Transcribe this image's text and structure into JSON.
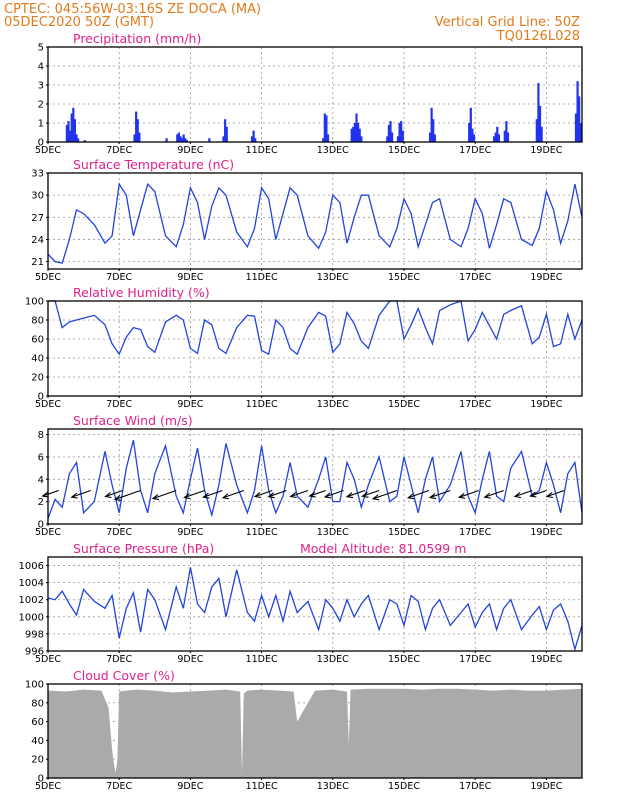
{
  "header": {
    "line1_left": "CPTEC:   045:56W-03:16S   ZE DOCA (MA)",
    "line2_left": "05DEC2020 50Z (GMT)",
    "line1_right": "Vertical Grid Line: 50Z",
    "line2_right": "TQ0126L028"
  },
  "colors": {
    "header": "#e07b1c",
    "panel_title": "#e0208c",
    "series": "#2244dd",
    "cloud": "#aaaaaa"
  },
  "x_axis": {
    "labels": [
      "5DEC",
      "7DEC",
      "9DEC",
      "11DEC",
      "13DEC",
      "15DEC",
      "17DEC",
      "19DEC"
    ]
  },
  "chart_data": [
    {
      "type": "bar",
      "title": "Precipitation (mm/h)",
      "ylim": [
        0,
        5
      ],
      "yticks": [
        "0",
        "1",
        "2",
        "3",
        "4",
        "5"
      ],
      "grid": true,
      "days": [
        5,
        20
      ],
      "series": [
        {
          "peaks": [
            {
              "day": 5.5,
              "values": [
                0.9,
                1.1,
                0.6,
                1.5,
                1.8,
                1.2,
                0.4,
                0.2
              ]
            },
            {
              "day": 6.0,
              "values": [
                0.1
              ]
            },
            {
              "day": 7.4,
              "values": [
                0.4,
                1.6,
                1.2,
                0.5
              ]
            },
            {
              "day": 8.3,
              "values": [
                0.2
              ]
            },
            {
              "day": 8.6,
              "values": [
                0.4,
                0.5,
                0.3,
                0.2,
                0.4,
                0.2,
                0.1
              ]
            },
            {
              "day": 9.5,
              "values": [
                0.2
              ]
            },
            {
              "day": 9.9,
              "values": [
                0.3,
                1.2,
                0.8
              ]
            },
            {
              "day": 10.7,
              "values": [
                0.3,
                0.6,
                0.2
              ]
            },
            {
              "day": 12.7,
              "values": [
                0.2,
                1.5,
                1.4,
                0.4
              ]
            },
            {
              "day": 13.5,
              "values": [
                0.7,
                0.8,
                1.0,
                1.5,
                1.0,
                0.7,
                0.3
              ]
            },
            {
              "day": 14.5,
              "values": [
                0.3,
                0.9,
                1.1,
                0.5
              ]
            },
            {
              "day": 14.8,
              "values": [
                0.3,
                1.0,
                1.1,
                0.6
              ]
            },
            {
              "day": 15.7,
              "values": [
                0.5,
                1.8,
                1.2,
                0.4
              ]
            },
            {
              "day": 16.8,
              "values": [
                1.0,
                1.8,
                0.7,
                0.4
              ]
            },
            {
              "day": 17.5,
              "values": [
                0.3,
                0.5,
                0.8,
                0.4
              ]
            },
            {
              "day": 17.8,
              "values": [
                0.6,
                1.1,
                0.5
              ]
            },
            {
              "day": 18.7,
              "values": [
                1.2,
                3.1,
                1.9,
                0.8
              ]
            },
            {
              "day": 19.8,
              "values": [
                1.5,
                3.2,
                2.4,
                1.0
              ]
            }
          ]
        }
      ]
    },
    {
      "type": "line",
      "title": "Surface Temperature (nC)",
      "ylim": [
        20,
        33
      ],
      "yticks": [
        "21",
        "24",
        "27",
        "30",
        "33"
      ],
      "ytick_values": [
        21,
        24,
        27,
        30,
        33
      ],
      "grid": true,
      "series": [
        {
          "x": [
            5.0,
            5.2,
            5.4,
            5.6,
            5.8,
            6.0,
            6.3,
            6.6,
            6.8,
            7.0,
            7.2,
            7.4,
            7.6,
            7.8,
            8.0,
            8.3,
            8.6,
            8.8,
            9.0,
            9.2,
            9.4,
            9.6,
            9.8,
            10.0,
            10.3,
            10.6,
            10.8,
            11.0,
            11.2,
            11.4,
            11.6,
            11.8,
            12.0,
            12.3,
            12.6,
            12.8,
            13.0,
            13.2,
            13.4,
            13.6,
            13.8,
            14.0,
            14.3,
            14.6,
            14.8,
            15.0,
            15.2,
            15.4,
            15.6,
            15.8,
            16.0,
            16.3,
            16.6,
            16.8,
            17.0,
            17.2,
            17.4,
            17.6,
            17.8,
            18.0,
            18.3,
            18.6,
            18.8,
            19.0,
            19.2,
            19.4,
            19.6,
            19.8,
            20.0
          ],
          "values": [
            22.0,
            21.0,
            20.8,
            24.0,
            28.0,
            27.5,
            26.0,
            23.5,
            24.5,
            31.5,
            30.0,
            24.5,
            28.0,
            31.5,
            30.5,
            24.5,
            23.0,
            26.0,
            31.0,
            29.0,
            24.0,
            28.5,
            31.0,
            30.0,
            25.0,
            23.0,
            25.5,
            31.0,
            29.5,
            24.0,
            27.5,
            31.0,
            30.0,
            24.5,
            22.8,
            25.0,
            30.0,
            29.0,
            23.5,
            27.0,
            30.0,
            30.0,
            24.5,
            23.0,
            25.5,
            29.5,
            27.5,
            23.0,
            26.0,
            29.0,
            29.5,
            24.0,
            23.0,
            25.5,
            29.5,
            27.5,
            22.8,
            26.0,
            29.5,
            29.0,
            24.0,
            23.2,
            25.5,
            30.5,
            28.0,
            23.5,
            26.5,
            31.5,
            27.0
          ]
        }
      ]
    },
    {
      "type": "line",
      "title": "Relative Humidity (%)",
      "ylim": [
        0,
        100
      ],
      "yticks": [
        "0",
        "20",
        "40",
        "60",
        "80",
        "100"
      ],
      "ytick_values": [
        0,
        20,
        40,
        60,
        80,
        100
      ],
      "grid": true,
      "series": [
        {
          "x": [
            5.0,
            5.2,
            5.4,
            5.6,
            5.8,
            6.0,
            6.3,
            6.6,
            6.8,
            7.0,
            7.2,
            7.4,
            7.6,
            7.8,
            8.0,
            8.3,
            8.6,
            8.8,
            9.0,
            9.2,
            9.4,
            9.6,
            9.8,
            10.0,
            10.3,
            10.6,
            10.8,
            11.0,
            11.2,
            11.4,
            11.6,
            11.8,
            12.0,
            12.3,
            12.6,
            12.8,
            13.0,
            13.2,
            13.4,
            13.6,
            13.8,
            14.0,
            14.3,
            14.6,
            14.8,
            15.0,
            15.2,
            15.4,
            15.6,
            15.8,
            16.0,
            16.3,
            16.6,
            16.8,
            17.0,
            17.2,
            17.4,
            17.6,
            17.8,
            18.0,
            18.3,
            18.6,
            18.8,
            19.0,
            19.2,
            19.4,
            19.6,
            19.8,
            20.0
          ],
          "values": [
            100,
            100,
            72,
            78,
            80,
            82,
            85,
            75,
            55,
            44,
            62,
            72,
            70,
            52,
            46,
            78,
            85,
            80,
            50,
            45,
            80,
            75,
            50,
            45,
            72,
            85,
            84,
            48,
            44,
            80,
            72,
            50,
            44,
            72,
            88,
            84,
            46,
            55,
            88,
            76,
            58,
            50,
            85,
            100,
            100,
            60,
            75,
            92,
            72,
            55,
            90,
            96,
            100,
            58,
            70,
            88,
            74,
            60,
            86,
            90,
            95,
            55,
            62,
            86,
            52,
            55,
            86,
            60,
            80
          ]
        }
      ]
    },
    {
      "type": "line",
      "title": "Surface Wind (m/s)",
      "ylim": [
        0,
        8.5
      ],
      "yticks": [
        "0",
        "2",
        "4",
        "6",
        "8"
      ],
      "ytick_values": [
        0,
        2,
        4,
        6,
        8
      ],
      "grid": true,
      "series": [
        {
          "x": [
            5.0,
            5.2,
            5.4,
            5.6,
            5.8,
            6.0,
            6.3,
            6.6,
            6.8,
            7.0,
            7.2,
            7.4,
            7.6,
            7.8,
            8.0,
            8.3,
            8.6,
            8.8,
            9.0,
            9.2,
            9.4,
            9.6,
            9.8,
            10.0,
            10.3,
            10.6,
            10.8,
            11.0,
            11.2,
            11.4,
            11.6,
            11.8,
            12.0,
            12.3,
            12.6,
            12.8,
            13.0,
            13.2,
            13.4,
            13.6,
            13.8,
            14.0,
            14.3,
            14.6,
            14.8,
            15.0,
            15.2,
            15.4,
            15.6,
            15.8,
            16.0,
            16.3,
            16.6,
            16.8,
            17.0,
            17.2,
            17.4,
            17.6,
            17.8,
            18.0,
            18.3,
            18.6,
            18.8,
            19.0,
            19.2,
            19.4,
            19.6,
            19.8,
            20.0
          ],
          "values": [
            0.5,
            2.2,
            1.5,
            4.5,
            5.5,
            1.0,
            2.0,
            6.5,
            3.5,
            1.0,
            5.0,
            7.5,
            3.0,
            1.0,
            4.5,
            7.0,
            2.5,
            1.0,
            4.0,
            6.8,
            3.0,
            0.8,
            3.5,
            7.2,
            3.5,
            1.0,
            3.0,
            7.0,
            3.0,
            1.0,
            2.5,
            5.5,
            2.5,
            1.5,
            4.0,
            6.0,
            2.0,
            2.0,
            5.5,
            4.0,
            1.5,
            3.5,
            6.0,
            2.0,
            2.5,
            6.0,
            3.5,
            1.0,
            4.0,
            6.0,
            2.0,
            3.5,
            6.5,
            2.5,
            1.0,
            4.0,
            6.5,
            2.5,
            2.0,
            5.0,
            6.5,
            2.5,
            3.0,
            5.5,
            3.5,
            1.0,
            4.5,
            5.5,
            1.0
          ]
        }
      ],
      "vectors": [
        {
          "day": 5.3,
          "speed": 1.0
        },
        {
          "day": 6.2,
          "speed": 1.5
        },
        {
          "day": 7.1,
          "speed": 1.2
        },
        {
          "day": 7.6,
          "speed": 2.6
        },
        {
          "day": 8.6,
          "speed": 2.2
        },
        {
          "day": 9.4,
          "speed": 1.7
        },
        {
          "day": 9.9,
          "speed": 1.5
        },
        {
          "day": 10.5,
          "speed": 1.8
        },
        {
          "day": 11.3,
          "speed": 1.2
        },
        {
          "day": 11.7,
          "speed": 1.3
        },
        {
          "day": 12.3,
          "speed": 1.2
        },
        {
          "day": 12.8,
          "speed": 1.0
        },
        {
          "day": 13.3,
          "speed": 1.4
        },
        {
          "day": 13.9,
          "speed": 1.3
        },
        {
          "day": 14.3,
          "speed": 1.1
        },
        {
          "day": 14.8,
          "speed": 2.3
        },
        {
          "day": 15.7,
          "speed": 1.8
        },
        {
          "day": 16.3,
          "speed": 1.7
        },
        {
          "day": 17.1,
          "speed": 1.6
        },
        {
          "day": 17.8,
          "speed": 1.5
        },
        {
          "day": 18.6,
          "speed": 1.2
        },
        {
          "day": 19.0,
          "speed": 1.0
        },
        {
          "day": 19.5,
          "speed": 1.2
        }
      ]
    },
    {
      "type": "line",
      "title": "Surface Pressure (hPa)",
      "annotation": "Model Altitude: 81.0599 m",
      "ylim": [
        996,
        1007
      ],
      "yticks": [
        "996",
        "998",
        "1000",
        "1002",
        "1004",
        "1006"
      ],
      "ytick_values": [
        996,
        998,
        1000,
        1002,
        1004,
        1006
      ],
      "grid": true,
      "series": [
        {
          "x": [
            5.0,
            5.2,
            5.4,
            5.6,
            5.8,
            6.0,
            6.3,
            6.6,
            6.8,
            7.0,
            7.2,
            7.4,
            7.6,
            7.8,
            8.0,
            8.3,
            8.6,
            8.8,
            9.0,
            9.2,
            9.4,
            9.6,
            9.8,
            10.0,
            10.3,
            10.6,
            10.8,
            11.0,
            11.2,
            11.4,
            11.6,
            11.8,
            12.0,
            12.3,
            12.6,
            12.8,
            13.0,
            13.2,
            13.4,
            13.6,
            13.8,
            14.0,
            14.3,
            14.6,
            14.8,
            15.0,
            15.2,
            15.4,
            15.6,
            15.8,
            16.0,
            16.3,
            16.6,
            16.8,
            17.0,
            17.2,
            17.4,
            17.6,
            17.8,
            18.0,
            18.3,
            18.6,
            18.8,
            19.0,
            19.2,
            19.4,
            19.6,
            19.8,
            20.0
          ],
          "values": [
            1002.2,
            1002.0,
            1003.0,
            1001.5,
            1000.2,
            1003.2,
            1001.8,
            1001.0,
            1002.5,
            997.5,
            1001.0,
            1002.8,
            998.2,
            1003.2,
            1002.0,
            998.5,
            1003.5,
            1001.0,
            1005.8,
            1001.5,
            1000.5,
            1003.5,
            1004.5,
            1000.0,
            1005.5,
            1000.5,
            999.5,
            1002.5,
            1000.0,
            1002.5,
            999.5,
            1003.0,
            1000.5,
            1001.8,
            998.5,
            1002.0,
            1001.0,
            999.5,
            1002.0,
            1000.0,
            1001.5,
            1002.5,
            998.5,
            1002.0,
            1001.5,
            999.0,
            1002.5,
            1001.8,
            998.5,
            1001.0,
            1002.0,
            999.0,
            1000.5,
            1001.5,
            998.8,
            1000.5,
            1001.5,
            998.5,
            1001.0,
            1002.0,
            998.5,
            1000.2,
            1001.2,
            998.5,
            1000.8,
            1001.5,
            999.5,
            996.2,
            999.0
          ]
        }
      ]
    },
    {
      "type": "area",
      "title": "Cloud Cover (%)",
      "ylim": [
        0,
        100
      ],
      "yticks": [
        "0",
        "20",
        "40",
        "60",
        "80",
        "100"
      ],
      "ytick_values": [
        0,
        20,
        40,
        60,
        80,
        100
      ],
      "grid": true,
      "series": [
        {
          "x": [
            5.0,
            5.5,
            6.0,
            6.5,
            6.7,
            6.8,
            6.85,
            6.9,
            6.95,
            7.0,
            7.2,
            7.5,
            8.0,
            8.5,
            9.0,
            9.5,
            10.0,
            10.4,
            10.45,
            10.5,
            10.6,
            11.0,
            11.5,
            11.9,
            12.0,
            12.5,
            13.0,
            13.4,
            13.45,
            13.5,
            14.0,
            14.5,
            15.0,
            15.5,
            16.0,
            16.5,
            17.0,
            17.5,
            18.0,
            18.5,
            19.0,
            19.5,
            20.0
          ],
          "values": [
            93,
            92,
            94,
            93,
            75,
            30,
            15,
            5,
            20,
            92,
            93,
            94,
            93,
            91,
            92,
            93,
            94,
            92,
            5,
            90,
            93,
            94,
            93,
            92,
            60,
            93,
            94,
            92,
            35,
            94,
            95,
            95,
            95,
            94,
            95,
            95,
            94,
            93,
            94,
            93,
            93,
            94,
            95
          ]
        }
      ]
    }
  ]
}
